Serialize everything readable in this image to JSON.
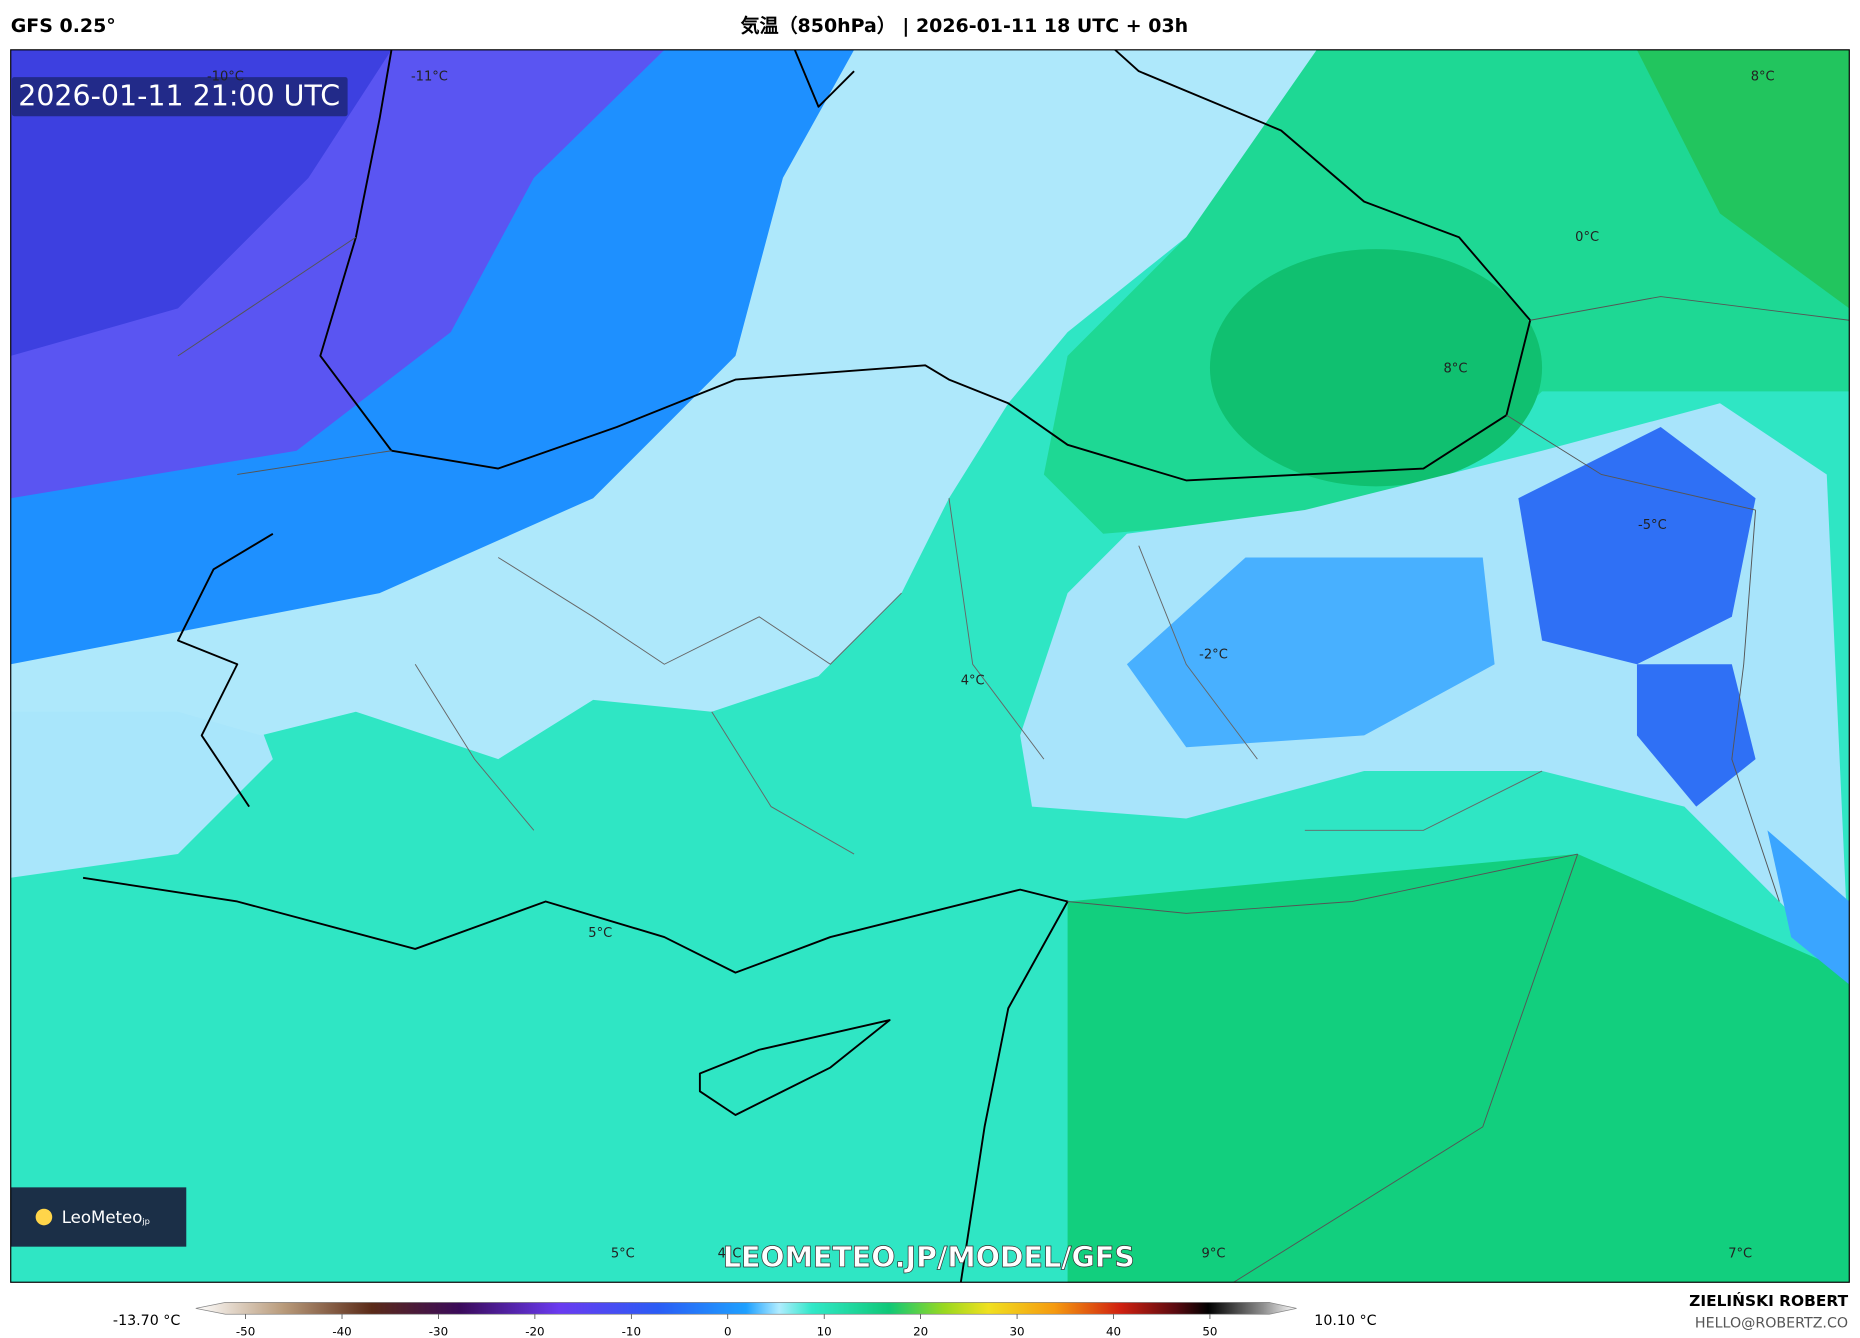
{
  "header": {
    "model": "GFS 0.25°",
    "title": "気温（850hPa） | 2026-01-11 18 UTC + 03h"
  },
  "map": {
    "valid_time": "2026-01-11 21:00 UTC",
    "labels": [
      "-10°C",
      "-11°C",
      "8°C",
      "0°C",
      "8°C",
      "-5°C",
      "-2°C",
      "4°C",
      "5°C",
      "5°C",
      "4°C",
      "9°C",
      "7°C"
    ],
    "watermark": "LEOMETEO.JP/MODEL/GFS",
    "logo": "LeoMeteo",
    "logo_suffix": "jp"
  },
  "colorbar": {
    "min_label": "-13.70 °C",
    "max_label": "10.10 °C",
    "ticks": [
      -50,
      -40,
      -30,
      -20,
      -10,
      0,
      10,
      20,
      30,
      40,
      50
    ]
  },
  "footer": {
    "author": "ZIELIŃSKI ROBERT",
    "email": "HELLO@ROBERTZ.CO"
  }
}
